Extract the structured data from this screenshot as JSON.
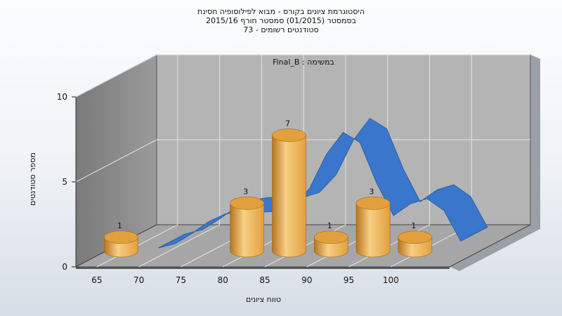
{
  "chart_data": {
    "type": "bar",
    "title_lines": [
      "היסטוגרמת ציונים בקורס - מבוא לפילוסופיה חסינת",
      "בסמסטר  (01/2015)  סמסטר חורף 2015/16",
      "סטודנטים רשומים - 73"
    ],
    "annotation": "Final_B : במשימה",
    "xlabel": "טווח ציונים",
    "ylabel": "מספר סטודנטים",
    "x_ticks": [
      "65",
      "70",
      "75",
      "80",
      "85",
      "90",
      "95",
      "100"
    ],
    "y_ticks": [
      0,
      5,
      10
    ],
    "ylim": [
      0,
      10
    ],
    "bars": [
      {
        "x": 65,
        "value": 1,
        "label": "1"
      },
      {
        "x": 80,
        "value": 3,
        "label": "3"
      },
      {
        "x": 85,
        "value": 7,
        "label": "7"
      },
      {
        "x": 90,
        "value": 1,
        "label": "1"
      },
      {
        "x": 95,
        "value": 3,
        "label": "3"
      },
      {
        "x": 100,
        "value": 1,
        "label": "1"
      }
    ],
    "curve": {
      "x": [
        68,
        70,
        72,
        74,
        76,
        78,
        80,
        82,
        84,
        86,
        88,
        90,
        92,
        94,
        96,
        98,
        100,
        102,
        104
      ],
      "values": [
        0.0,
        0.25,
        0.85,
        1.55,
        2.0,
        2.15,
        2.1,
        2.15,
        2.45,
        3.5,
        5.5,
        6.8,
        6.2,
        3.8,
        1.9,
        2.6,
        2.9,
        2.2,
        0.4
      ]
    },
    "grid": true,
    "colors": {
      "bar_light": "#f6cf86",
      "bar_mid": "#e2a03c",
      "bar_dark": "#b8741e",
      "curve": "#3a77cc",
      "wall": "#b4b4b4",
      "side_wall": "#8c8c8c",
      "floor": "#a6a6a6"
    }
  }
}
